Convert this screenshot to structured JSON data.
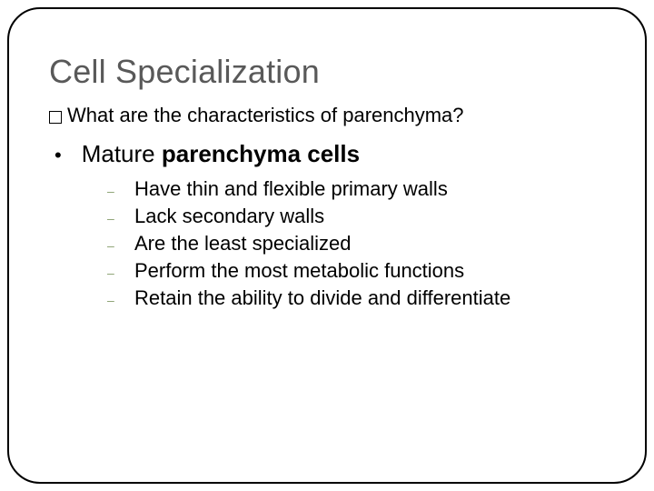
{
  "slide": {
    "title": "Cell Specialization",
    "question": "What are the characteristics of parenchyma?",
    "main_bullet_prefix": "Mature ",
    "main_bullet_bold": "parenchyma cells",
    "sub_items": [
      "Have thin and flexible primary walls",
      "Lack secondary walls",
      "Are the least specialized",
      "Perform the most metabolic functions",
      "Retain the ability to divide and differentiate"
    ]
  },
  "style": {
    "title_color": "#595959",
    "title_fontsize": 36,
    "body_fontsize": 22,
    "main_bullet_fontsize": 26,
    "sub_dash_color": "#8aa070",
    "border_color": "#000000",
    "border_radius": 36,
    "background_color": "#ffffff"
  }
}
